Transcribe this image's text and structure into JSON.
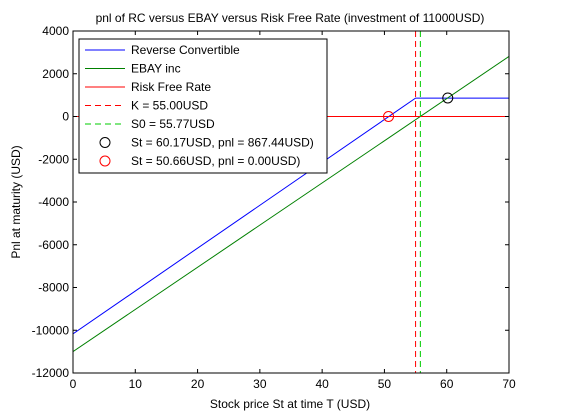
{
  "chart_data": {
    "type": "line",
    "title": "pnl of RC versus EBAY versus Risk Free Rate (investment of 11000USD)",
    "xlabel": "Stock price St at time T (USD)",
    "ylabel": "Pnl at maturity (USD)",
    "xlim": [
      0,
      70
    ],
    "ylim": [
      -12000,
      4000
    ],
    "xticks": [
      0,
      10,
      20,
      30,
      40,
      50,
      60,
      70
    ],
    "yticks": [
      -12000,
      -10000,
      -8000,
      -6000,
      -4000,
      -2000,
      0,
      2000,
      4000
    ],
    "grid": false,
    "legend_position": "top-left",
    "series": [
      {
        "name": "Reverse Convertible",
        "color": "#0000ff",
        "style": "solid",
        "x": [
          0,
          55,
          70
        ],
        "y": [
          -10170,
          860,
          860
        ]
      },
      {
        "name": "EBAY inc",
        "color": "#008000",
        "style": "solid",
        "x": [
          0,
          70
        ],
        "y": [
          -11000,
          2810
        ]
      },
      {
        "name": "Risk Free Rate",
        "color": "#ff0000",
        "style": "solid",
        "x": [
          0,
          70
        ],
        "y": [
          0,
          0
        ]
      },
      {
        "name": "K = 55.00USD",
        "color": "#ff0000",
        "style": "dashed",
        "vertical_x": 55
      },
      {
        "name": "S0 = 55.77USD",
        "color": "#00cc00",
        "style": "dashed",
        "vertical_x": 55.77
      },
      {
        "name": "St = 60.17USD, pnl = 867.44USD)",
        "color": "#000000",
        "style": "marker",
        "x": [
          60.17
        ],
        "y": [
          867.44
        ]
      },
      {
        "name": "St = 50.66USD, pnl = 0.00USD)",
        "color": "#ff0000",
        "style": "marker",
        "x": [
          50.66
        ],
        "y": [
          0
        ]
      }
    ]
  }
}
